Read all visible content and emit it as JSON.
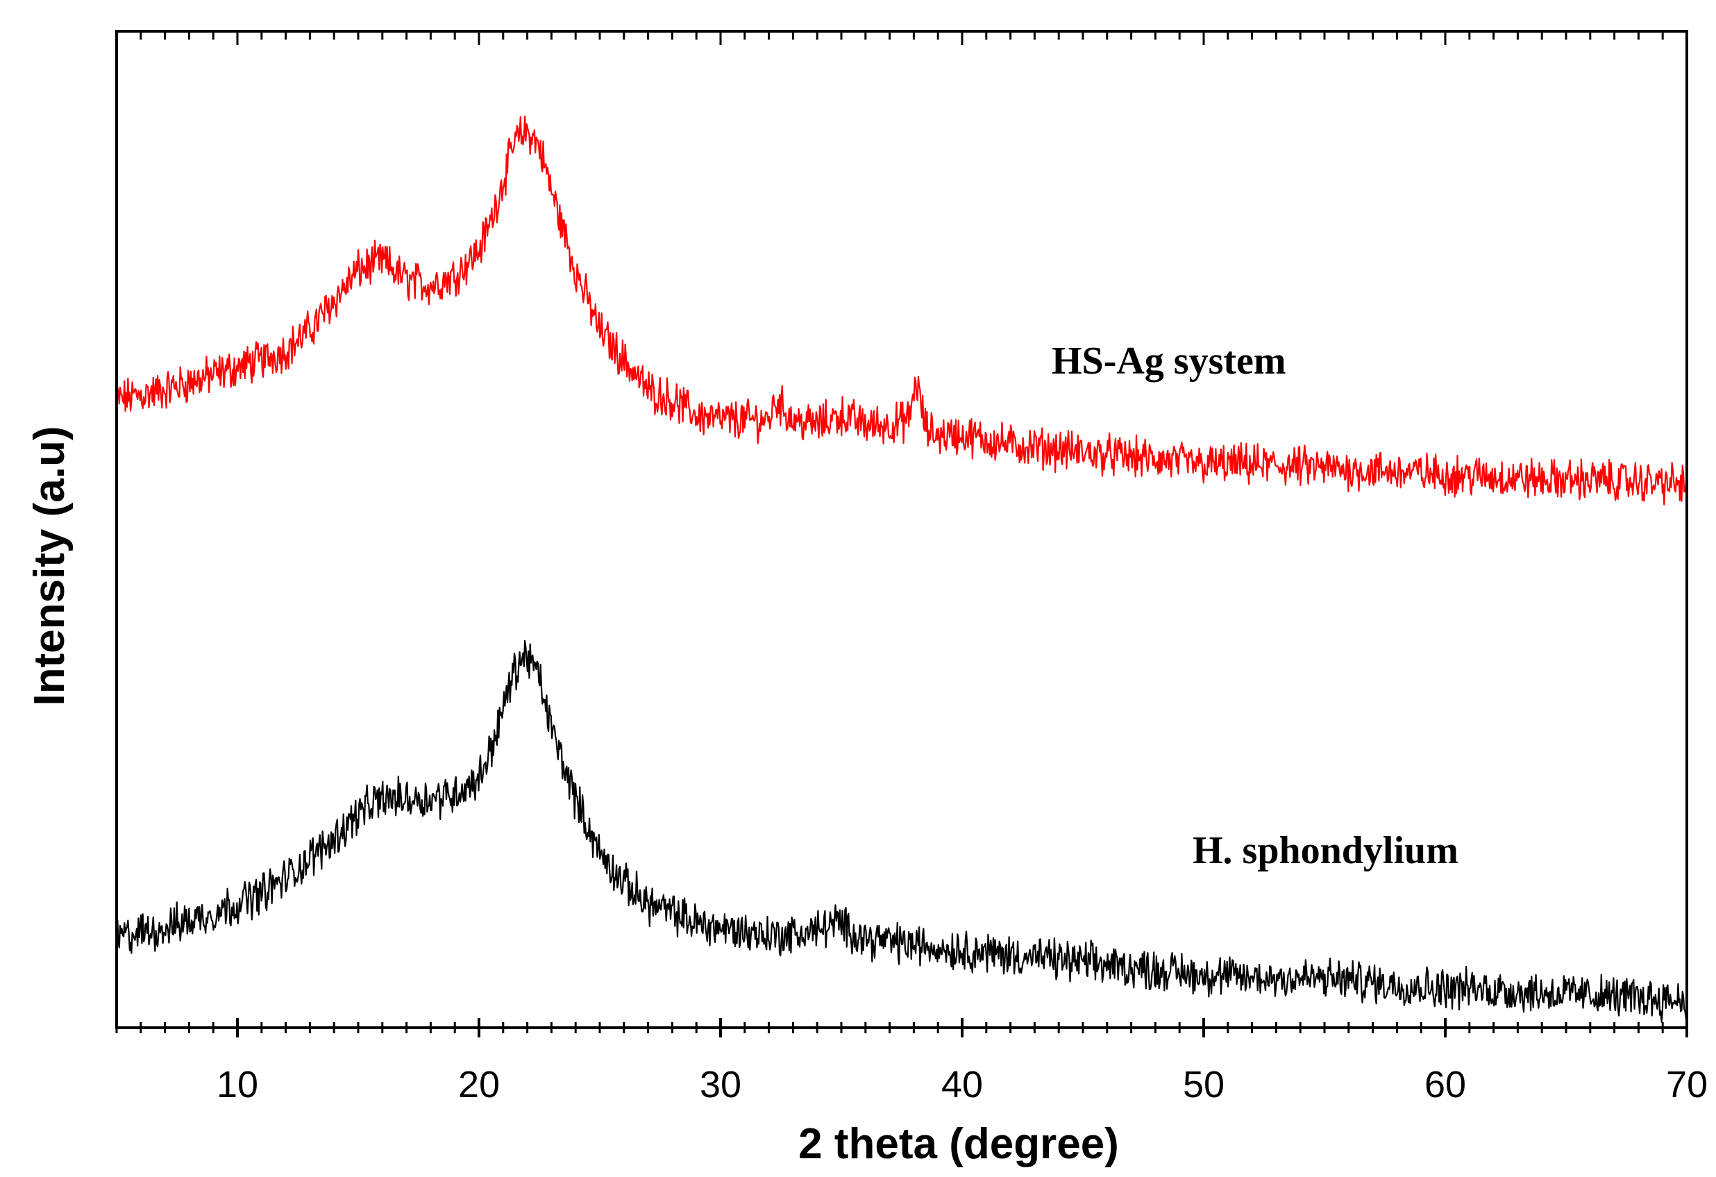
{
  "chart_data": {
    "type": "line",
    "title": "",
    "xlabel": "2 theta (degree)",
    "ylabel": "Intensity (a.u)",
    "xlim": [
      5,
      70
    ],
    "ylim": [
      0,
      100
    ],
    "x_ticks": [
      10,
      20,
      30,
      40,
      50,
      60,
      70
    ],
    "x_tick_labels": [
      "10",
      "20",
      "30",
      "40",
      "50",
      "60",
      "70"
    ],
    "y_tick_labels_shown": false,
    "grid": false,
    "legend": "none",
    "series": [
      {
        "name": "HS-Ag system",
        "color": "#ff0000",
        "x": [
          5,
          7,
          9,
          11,
          12,
          13,
          14,
          15,
          16,
          17,
          18,
          19,
          20,
          20.5,
          21,
          21.5,
          22,
          22.5,
          23,
          24,
          25,
          26,
          27,
          28,
          29,
          30,
          32,
          32.3,
          33,
          34,
          35,
          36,
          37,
          37.8,
          38.1,
          38.5,
          39,
          40,
          42,
          44,
          46,
          48,
          50,
          52,
          54,
          56,
          58,
          60,
          62,
          64,
          66,
          68,
          70
        ],
        "y": [
          63.0,
          64.0,
          65.5,
          67.0,
          68.0,
          70.0,
          73.0,
          76.0,
          77.0,
          75.0,
          74.5,
          75.5,
          78.0,
          81.0,
          85.0,
          89.0,
          90.0,
          88.5,
          84.0,
          76.0,
          70.0,
          67.0,
          64.0,
          63.0,
          61.5,
          61.0,
          61.0,
          63.0,
          61.0,
          60.5,
          61.5,
          60.5,
          60.5,
          61.0,
          65.0,
          60.0,
          59.5,
          59.5,
          58.5,
          58.0,
          57.5,
          57.0,
          56.5,
          56.5,
          56.3,
          56.0,
          55.8,
          55.5,
          55.3,
          55.0,
          55.0,
          54.8,
          54.5
        ]
      },
      {
        "name": "H. sphondylium",
        "color": "#000000",
        "x": [
          5,
          7,
          9,
          11,
          12,
          13,
          14,
          15,
          16,
          17,
          18,
          19,
          20,
          20.5,
          21,
          21.5,
          22,
          22.5,
          23,
          24,
          25,
          26,
          27,
          28,
          29,
          30,
          32,
          33,
          34,
          34.8,
          36,
          38,
          40,
          42,
          44,
          46,
          48,
          50,
          52,
          54,
          56,
          58,
          60,
          62,
          64,
          66,
          68,
          70
        ],
        "y": [
          9.0,
          10.0,
          11.5,
          13.5,
          15.0,
          17.0,
          19.0,
          21.5,
          23.0,
          23.0,
          23.0,
          23.5,
          25.0,
          28.0,
          32.0,
          36.0,
          37.5,
          35.0,
          30.0,
          23.0,
          17.5,
          14.5,
          12.5,
          11.5,
          10.5,
          10.0,
          9.3,
          9.3,
          9.8,
          10.5,
          9.0,
          8.3,
          7.8,
          7.3,
          6.8,
          6.3,
          5.8,
          5.3,
          5.0,
          5.0,
          4.8,
          4.3,
          4.0,
          3.8,
          3.5,
          3.3,
          3.0,
          2.8
        ]
      }
    ]
  }
}
